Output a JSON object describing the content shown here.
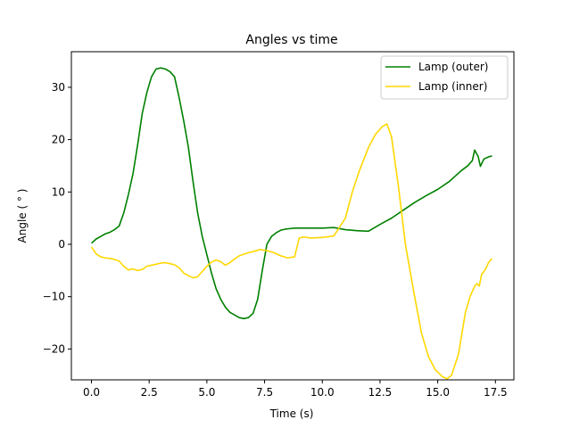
{
  "chart_data": {
    "type": "line",
    "title": "Angles vs time",
    "xlabel": "Time (s)",
    "ylabel": "Angle ( ° )",
    "xlim": [
      -0.87,
      18.3
    ],
    "ylim": [
      -25.9,
      36.8
    ],
    "xticks": [
      0.0,
      2.5,
      5.0,
      7.5,
      10.0,
      12.5,
      15.0,
      17.5
    ],
    "xtick_labels": [
      "0.0",
      "2.5",
      "5.0",
      "7.5",
      "10.0",
      "12.5",
      "15.0",
      "17.5"
    ],
    "yticks": [
      -20,
      -10,
      0,
      10,
      20,
      30
    ],
    "ytick_labels": [
      "−20",
      "−10",
      "0",
      "10",
      "20",
      "30"
    ],
    "grid": false,
    "legend_position": "upper right",
    "series": [
      {
        "name": "Lamp (outer)",
        "color": "#008000",
        "points": [
          [
            0.0,
            0.2
          ],
          [
            0.2,
            1.0
          ],
          [
            0.4,
            1.5
          ],
          [
            0.6,
            2.0
          ],
          [
            0.8,
            2.3
          ],
          [
            1.0,
            2.8
          ],
          [
            1.2,
            3.5
          ],
          [
            1.4,
            6.0
          ],
          [
            1.6,
            9.5
          ],
          [
            1.8,
            13.5
          ],
          [
            2.0,
            19.0
          ],
          [
            2.2,
            25.0
          ],
          [
            2.4,
            29.0
          ],
          [
            2.6,
            32.0
          ],
          [
            2.8,
            33.5
          ],
          [
            3.0,
            33.7
          ],
          [
            3.2,
            33.5
          ],
          [
            3.4,
            33.0
          ],
          [
            3.6,
            32.0
          ],
          [
            3.8,
            28.0
          ],
          [
            4.0,
            23.5
          ],
          [
            4.2,
            18.5
          ],
          [
            4.4,
            12.0
          ],
          [
            4.6,
            6.0
          ],
          [
            4.8,
            1.5
          ],
          [
            5.0,
            -2.0
          ],
          [
            5.2,
            -5.5
          ],
          [
            5.4,
            -8.5
          ],
          [
            5.6,
            -10.5
          ],
          [
            5.8,
            -12.0
          ],
          [
            6.0,
            -13.0
          ],
          [
            6.2,
            -13.5
          ],
          [
            6.4,
            -14.0
          ],
          [
            6.6,
            -14.2
          ],
          [
            6.8,
            -14.0
          ],
          [
            7.0,
            -13.2
          ],
          [
            7.2,
            -10.5
          ],
          [
            7.4,
            -5.0
          ],
          [
            7.6,
            0.0
          ],
          [
            7.8,
            1.5
          ],
          [
            8.0,
            2.2
          ],
          [
            8.2,
            2.7
          ],
          [
            8.4,
            2.9
          ],
          [
            8.6,
            3.0
          ],
          [
            8.8,
            3.1
          ],
          [
            9.0,
            3.1
          ],
          [
            9.5,
            3.1
          ],
          [
            10.0,
            3.1
          ],
          [
            10.5,
            3.2
          ],
          [
            11.0,
            2.8
          ],
          [
            11.5,
            2.6
          ],
          [
            12.0,
            2.5
          ],
          [
            12.5,
            3.8
          ],
          [
            13.0,
            5.0
          ],
          [
            13.5,
            6.5
          ],
          [
            14.0,
            8.0
          ],
          [
            14.5,
            9.3
          ],
          [
            15.0,
            10.5
          ],
          [
            15.5,
            12.0
          ],
          [
            16.0,
            14.0
          ],
          [
            16.3,
            15.0
          ],
          [
            16.5,
            16.0
          ],
          [
            16.6,
            18.0
          ],
          [
            16.75,
            16.8
          ],
          [
            16.85,
            14.9
          ],
          [
            17.0,
            16.3
          ],
          [
            17.2,
            16.7
          ],
          [
            17.35,
            16.9
          ]
        ]
      },
      {
        "name": "Lamp (inner)",
        "color": "#ffd700",
        "points": [
          [
            0.0,
            -0.5
          ],
          [
            0.2,
            -1.8
          ],
          [
            0.4,
            -2.4
          ],
          [
            0.6,
            -2.6
          ],
          [
            0.8,
            -2.7
          ],
          [
            1.0,
            -2.9
          ],
          [
            1.2,
            -3.2
          ],
          [
            1.4,
            -4.2
          ],
          [
            1.6,
            -4.9
          ],
          [
            1.8,
            -4.7
          ],
          [
            2.0,
            -5.0
          ],
          [
            2.2,
            -4.8
          ],
          [
            2.4,
            -4.2
          ],
          [
            2.6,
            -4.0
          ],
          [
            2.8,
            -3.8
          ],
          [
            3.0,
            -3.6
          ],
          [
            3.2,
            -3.5
          ],
          [
            3.4,
            -3.7
          ],
          [
            3.6,
            -3.9
          ],
          [
            3.8,
            -4.5
          ],
          [
            4.0,
            -5.5
          ],
          [
            4.2,
            -6.0
          ],
          [
            4.4,
            -6.4
          ],
          [
            4.6,
            -6.2
          ],
          [
            4.8,
            -5.2
          ],
          [
            5.0,
            -4.2
          ],
          [
            5.2,
            -3.4
          ],
          [
            5.4,
            -3.0
          ],
          [
            5.6,
            -3.3
          ],
          [
            5.8,
            -4.0
          ],
          [
            6.0,
            -3.5
          ],
          [
            6.2,
            -2.8
          ],
          [
            6.4,
            -2.2
          ],
          [
            6.6,
            -1.9
          ],
          [
            6.8,
            -1.6
          ],
          [
            7.0,
            -1.4
          ],
          [
            7.3,
            -1.0
          ],
          [
            7.6,
            -1.2
          ],
          [
            7.9,
            -1.6
          ],
          [
            8.2,
            -2.2
          ],
          [
            8.5,
            -2.6
          ],
          [
            8.8,
            -2.4
          ],
          [
            9.0,
            1.2
          ],
          [
            9.2,
            1.4
          ],
          [
            9.5,
            1.2
          ],
          [
            10.0,
            1.3
          ],
          [
            10.5,
            1.6
          ],
          [
            11.0,
            5.0
          ],
          [
            11.3,
            10.0
          ],
          [
            11.6,
            14.0
          ],
          [
            12.0,
            18.5
          ],
          [
            12.3,
            21.0
          ],
          [
            12.6,
            22.5
          ],
          [
            12.8,
            23.0
          ],
          [
            13.0,
            20.5
          ],
          [
            13.3,
            11.0
          ],
          [
            13.6,
            0.0
          ],
          [
            14.0,
            -10.0
          ],
          [
            14.3,
            -17.0
          ],
          [
            14.6,
            -21.5
          ],
          [
            14.9,
            -24.0
          ],
          [
            15.2,
            -25.3
          ],
          [
            15.4,
            -25.7
          ],
          [
            15.6,
            -25.0
          ],
          [
            15.9,
            -21.0
          ],
          [
            16.2,
            -13.0
          ],
          [
            16.4,
            -10.0
          ],
          [
            16.6,
            -8.0
          ],
          [
            16.7,
            -7.5
          ],
          [
            16.8,
            -8.0
          ],
          [
            16.9,
            -5.8
          ],
          [
            17.0,
            -5.2
          ],
          [
            17.1,
            -4.5
          ],
          [
            17.2,
            -3.5
          ],
          [
            17.35,
            -2.7
          ]
        ]
      }
    ]
  }
}
